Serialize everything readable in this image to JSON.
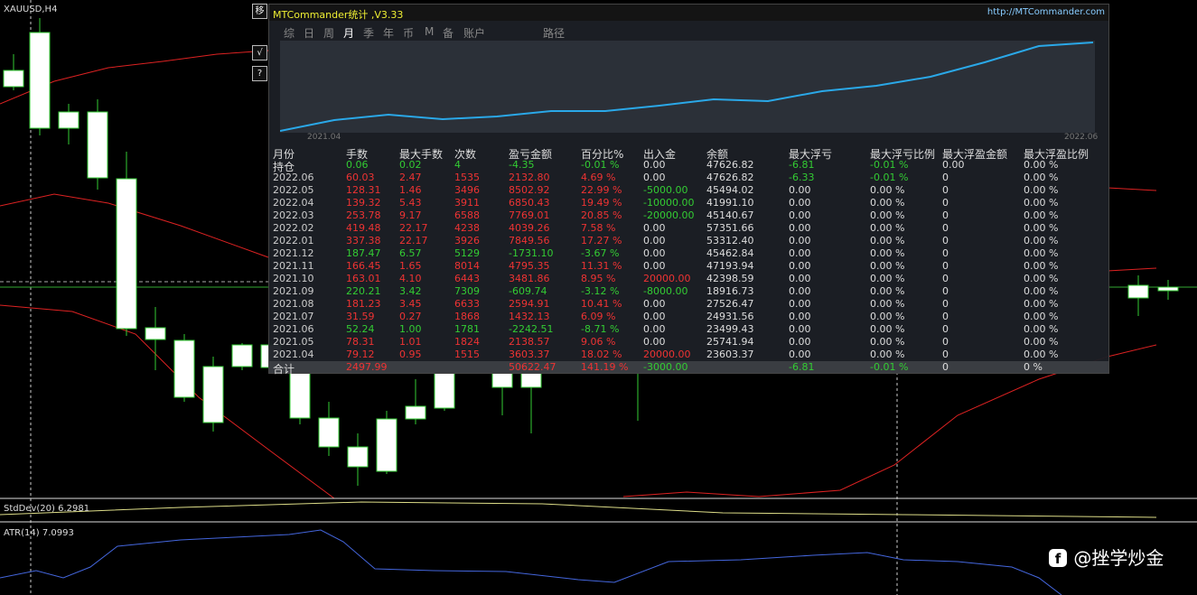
{
  "chart_window": {
    "symbol": "XAUUSD,H4",
    "buttons": [
      "移",
      "√",
      "?"
    ],
    "indicator_1": "StdDev(20) 6.2981",
    "indicator_2": "ATR(14) 7.0993"
  },
  "panel": {
    "title": "MTCommander统计 ,V3.33",
    "url": "http://MTCommander.com",
    "tabs": [
      "综",
      "日",
      "周",
      "月",
      "季",
      "年",
      "币",
      "M",
      "备",
      "账户",
      "路径"
    ],
    "active_tab": "月",
    "curve_start": "2021.04",
    "curve_end": "2022.06"
  },
  "table": {
    "header": [
      "月份",
      "手数",
      "最大手数",
      "次数",
      "盈亏金额",
      "百分比%",
      "出入金",
      "余额",
      "最大浮亏",
      "最大浮亏比例",
      "最大浮盈金额",
      "最大浮盈比例"
    ],
    "rows": [
      {
        "cells": [
          "持仓",
          "0.06",
          "0.02",
          "4",
          "-4.35",
          "-0.01 %",
          "0.00",
          "47626.82",
          "-6.81",
          "-0.01 %",
          "0.00",
          "0.00 %"
        ],
        "colors": [
          "#ddd",
          "#3c3",
          "#3c3",
          "#3c3",
          "#3c3",
          "#3c3",
          "#ddd",
          "#ddd",
          "#3c3",
          "#3c3",
          "#ddd",
          "#ddd"
        ]
      },
      {
        "cells": [
          "2022.06",
          "60.03",
          "2.47",
          "1535",
          "2132.80",
          "4.69 %",
          "0.00",
          "47626.82",
          "-6.33",
          "-0.01 %",
          "0",
          "0.00 %"
        ],
        "colors": [
          "#ccc",
          "#e33",
          "#e33",
          "#e33",
          "#e33",
          "#e33",
          "#ddd",
          "#ddd",
          "#3c3",
          "#3c3",
          "#ddd",
          "#ddd"
        ]
      },
      {
        "cells": [
          "2022.05",
          "128.31",
          "1.46",
          "3496",
          "8502.92",
          "22.99 %",
          "-5000.00",
          "45494.02",
          "0.00",
          "0.00 %",
          "0",
          "0.00 %"
        ],
        "colors": [
          "#ccc",
          "#e33",
          "#e33",
          "#e33",
          "#e33",
          "#e33",
          "#3c3",
          "#ddd",
          "#ddd",
          "#ddd",
          "#ddd",
          "#ddd"
        ]
      },
      {
        "cells": [
          "2022.04",
          "139.32",
          "5.43",
          "3911",
          "6850.43",
          "19.49 %",
          "-10000.00",
          "41991.10",
          "0.00",
          "0.00 %",
          "0",
          "0.00 %"
        ],
        "colors": [
          "#ccc",
          "#e33",
          "#e33",
          "#e33",
          "#e33",
          "#e33",
          "#3c3",
          "#ddd",
          "#ddd",
          "#ddd",
          "#ddd",
          "#ddd"
        ]
      },
      {
        "cells": [
          "2022.03",
          "253.78",
          "9.17",
          "6588",
          "7769.01",
          "20.85 %",
          "-20000.00",
          "45140.67",
          "0.00",
          "0.00 %",
          "0",
          "0.00 %"
        ],
        "colors": [
          "#ccc",
          "#e33",
          "#e33",
          "#e33",
          "#e33",
          "#e33",
          "#3c3",
          "#ddd",
          "#ddd",
          "#ddd",
          "#ddd",
          "#ddd"
        ]
      },
      {
        "cells": [
          "2022.02",
          "419.48",
          "22.17",
          "4238",
          "4039.26",
          "7.58 %",
          "0.00",
          "57351.66",
          "0.00",
          "0.00 %",
          "0",
          "0.00 %"
        ],
        "colors": [
          "#ccc",
          "#e33",
          "#e33",
          "#e33",
          "#e33",
          "#e33",
          "#ddd",
          "#ddd",
          "#ddd",
          "#ddd",
          "#ddd",
          "#ddd"
        ]
      },
      {
        "cells": [
          "2022.01",
          "337.38",
          "22.17",
          "3926",
          "7849.56",
          "17.27 %",
          "0.00",
          "53312.40",
          "0.00",
          "0.00 %",
          "0",
          "0.00 %"
        ],
        "colors": [
          "#ccc",
          "#e33",
          "#e33",
          "#e33",
          "#e33",
          "#e33",
          "#ddd",
          "#ddd",
          "#ddd",
          "#ddd",
          "#ddd",
          "#ddd"
        ]
      },
      {
        "cells": [
          "2021.12",
          "187.47",
          "6.57",
          "5129",
          "-1731.10",
          "-3.67 %",
          "0.00",
          "45462.84",
          "0.00",
          "0.00 %",
          "0",
          "0.00 %"
        ],
        "colors": [
          "#ccc",
          "#3c3",
          "#3c3",
          "#3c3",
          "#3c3",
          "#3c3",
          "#ddd",
          "#ddd",
          "#ddd",
          "#ddd",
          "#ddd",
          "#ddd"
        ]
      },
      {
        "cells": [
          "2021.11",
          "166.45",
          "1.65",
          "8014",
          "4795.35",
          "11.31 %",
          "0.00",
          "47193.94",
          "0.00",
          "0.00 %",
          "0",
          "0.00 %"
        ],
        "colors": [
          "#ccc",
          "#e33",
          "#e33",
          "#e33",
          "#e33",
          "#e33",
          "#ddd",
          "#ddd",
          "#ddd",
          "#ddd",
          "#ddd",
          "#ddd"
        ]
      },
      {
        "cells": [
          "2021.10",
          "163.01",
          "4.10",
          "6443",
          "3481.86",
          "8.95 %",
          "20000.00",
          "42398.59",
          "0.00",
          "0.00 %",
          "0",
          "0.00 %"
        ],
        "colors": [
          "#ccc",
          "#e33",
          "#e33",
          "#e33",
          "#e33",
          "#e33",
          "#e33",
          "#ddd",
          "#ddd",
          "#ddd",
          "#ddd",
          "#ddd"
        ]
      },
      {
        "cells": [
          "2021.09",
          "220.21",
          "3.42",
          "7309",
          "-609.74",
          "-3.12 %",
          "-8000.00",
          "18916.73",
          "0.00",
          "0.00 %",
          "0",
          "0.00 %"
        ],
        "colors": [
          "#ccc",
          "#3c3",
          "#3c3",
          "#3c3",
          "#3c3",
          "#3c3",
          "#3c3",
          "#ddd",
          "#ddd",
          "#ddd",
          "#ddd",
          "#ddd"
        ]
      },
      {
        "cells": [
          "2021.08",
          "181.23",
          "3.45",
          "6633",
          "2594.91",
          "10.41 %",
          "0.00",
          "27526.47",
          "0.00",
          "0.00 %",
          "0",
          "0.00 %"
        ],
        "colors": [
          "#ccc",
          "#e33",
          "#e33",
          "#e33",
          "#e33",
          "#e33",
          "#ddd",
          "#ddd",
          "#ddd",
          "#ddd",
          "#ddd",
          "#ddd"
        ]
      },
      {
        "cells": [
          "2021.07",
          "31.59",
          "0.27",
          "1868",
          "1432.13",
          "6.09 %",
          "0.00",
          "24931.56",
          "0.00",
          "0.00 %",
          "0",
          "0.00 %"
        ],
        "colors": [
          "#ccc",
          "#e33",
          "#e33",
          "#e33",
          "#e33",
          "#e33",
          "#ddd",
          "#ddd",
          "#ddd",
          "#ddd",
          "#ddd",
          "#ddd"
        ]
      },
      {
        "cells": [
          "2021.06",
          "52.24",
          "1.00",
          "1781",
          "-2242.51",
          "-8.71 %",
          "0.00",
          "23499.43",
          "0.00",
          "0.00 %",
          "0",
          "0.00 %"
        ],
        "colors": [
          "#ccc",
          "#3c3",
          "#3c3",
          "#3c3",
          "#3c3",
          "#3c3",
          "#ddd",
          "#ddd",
          "#ddd",
          "#ddd",
          "#ddd",
          "#ddd"
        ]
      },
      {
        "cells": [
          "2021.05",
          "78.31",
          "1.01",
          "1824",
          "2138.57",
          "9.06 %",
          "0.00",
          "25741.94",
          "0.00",
          "0.00 %",
          "0",
          "0.00 %"
        ],
        "colors": [
          "#ccc",
          "#e33",
          "#e33",
          "#e33",
          "#e33",
          "#e33",
          "#ddd",
          "#ddd",
          "#ddd",
          "#ddd",
          "#ddd",
          "#ddd"
        ]
      },
      {
        "cells": [
          "2021.04",
          "79.12",
          "0.95",
          "1515",
          "3603.37",
          "18.02 %",
          "20000.00",
          "23603.37",
          "0.00",
          "0.00 %",
          "0",
          "0.00 %"
        ],
        "colors": [
          "#ccc",
          "#e33",
          "#e33",
          "#e33",
          "#e33",
          "#e33",
          "#e33",
          "#ddd",
          "#ddd",
          "#ddd",
          "#ddd",
          "#ddd"
        ]
      },
      {
        "cells": [
          "合计",
          "2497.99",
          null,
          null,
          "50622.47",
          "141.19 %",
          "-3000.00",
          null,
          "-6.81",
          "-0.01 %",
          "0",
          "0 %"
        ],
        "colors": [
          "#ddd",
          "#e33",
          "#ddd",
          "#ddd",
          "#e33",
          "#e33",
          "#3c3",
          "#ddd",
          "#3c3",
          "#3c3",
          "#ddd",
          "#ddd"
        ]
      }
    ]
  },
  "watermark": "@挫学炒金"
}
